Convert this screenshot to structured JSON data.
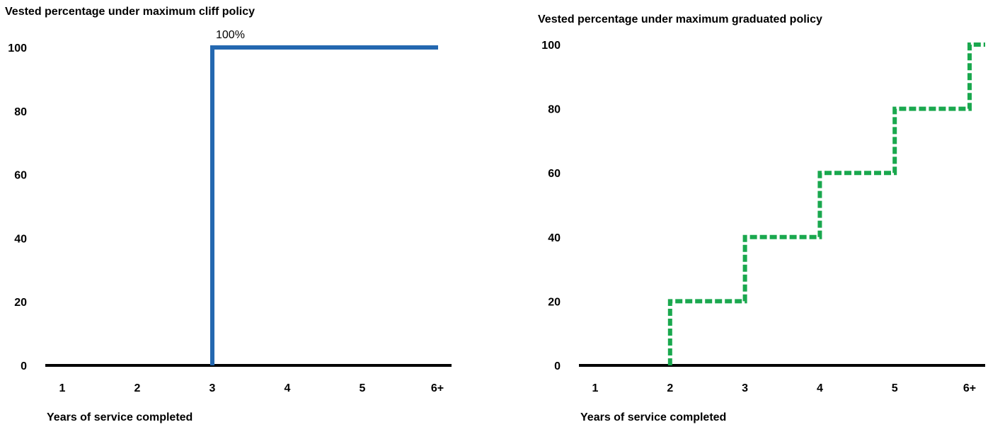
{
  "chart_data": [
    {
      "type": "line",
      "step": true,
      "title": "Vested percentage under maximum cliff policy",
      "xlabel": "Years of service completed",
      "ylabel": "",
      "categories": [
        "1",
        "2",
        "3",
        "4",
        "5",
        "6+"
      ],
      "yticks": [
        0,
        20,
        40,
        60,
        80,
        100
      ],
      "ylim": [
        0,
        100
      ],
      "grid": false,
      "series": [
        {
          "values": [
            0,
            0,
            100,
            100,
            100,
            100
          ],
          "color": "#2468b0",
          "style": "solid"
        }
      ],
      "annotations": [
        {
          "text": "100%",
          "x": "3",
          "y": 100
        }
      ]
    },
    {
      "type": "line",
      "step": true,
      "title": "Vested percentage under maximum graduated policy",
      "xlabel": "Years of service completed",
      "ylabel": "",
      "categories": [
        "1",
        "2",
        "3",
        "4",
        "5",
        "6+"
      ],
      "yticks": [
        0,
        20,
        40,
        60,
        80,
        100
      ],
      "ylim": [
        0,
        100
      ],
      "grid": false,
      "series": [
        {
          "values": [
            0,
            20,
            40,
            60,
            80,
            100
          ],
          "color": "#1aa84e",
          "style": "dashed"
        }
      ],
      "annotations": []
    }
  ]
}
